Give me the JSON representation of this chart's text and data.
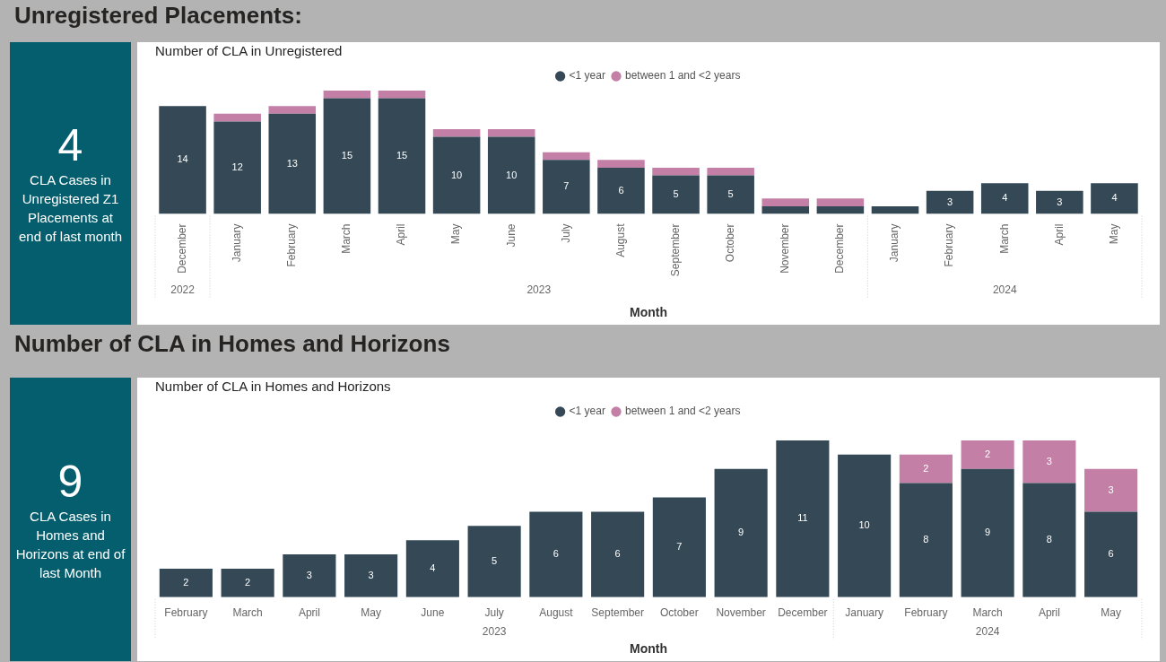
{
  "chart_data": [
    {
      "type": "other",
      "title": "Unregistered Placements:",
      "annotations": [
        "4",
        "CLA Cases in Unregistered Z1 Placements at end of last month"
      ]
    },
    {
      "type": "bar",
      "stacked": true,
      "title": "Number of CLA in Unregistered",
      "xlabel": "Month",
      "legend": "top",
      "categories": [
        "December",
        "January",
        "February",
        "March",
        "April",
        "May",
        "June",
        "July",
        "August",
        "September",
        "October",
        "November",
        "December",
        "January",
        "February",
        "March",
        "April",
        "May"
      ],
      "annotations": [
        "2022",
        "2023",
        "2024"
      ],
      "series": [
        {
          "name": "<1 year",
          "color": "#344856",
          "values": [
            14,
            12,
            13,
            15,
            15,
            10,
            10,
            7,
            6,
            5,
            5,
            1,
            1,
            1,
            3,
            4,
            3,
            4
          ],
          "value_labels": [
            "14",
            "12",
            "13",
            "15",
            "15",
            "10",
            "10",
            "7",
            "6",
            "5",
            "5",
            null,
            null,
            null,
            "3",
            "4",
            "3",
            "4"
          ]
        },
        {
          "name": "between 1 and <2 years",
          "color": "#c47fa6",
          "values": [
            null,
            1,
            1,
            1,
            1,
            1,
            1,
            1,
            1,
            1,
            1,
            1,
            1,
            null,
            null,
            null,
            null,
            null
          ]
        }
      ]
    },
    {
      "type": "other",
      "title": "Number of CLA in Homes and Horizons",
      "annotations": [
        "9",
        "CLA Cases in Homes and Horizons at end of last Month"
      ]
    },
    {
      "type": "bar",
      "stacked": true,
      "title": "Number of CLA in Homes and Horizons",
      "xlabel": "Month",
      "legend": "top",
      "data_labels": true,
      "categories": [
        "February",
        "March",
        "April",
        "May",
        "June",
        "July",
        "August",
        "September",
        "October",
        "November",
        "December",
        "January",
        "February",
        "March",
        "April",
        "May"
      ],
      "annotations": [
        "2023",
        "2024"
      ],
      "series": [
        {
          "name": "<1 year",
          "color": "#344856",
          "values": [
            2,
            2,
            3,
            3,
            4,
            5,
            6,
            6,
            7,
            9,
            11,
            10,
            8,
            9,
            8,
            6
          ]
        },
        {
          "name": "between 1 and <2 years",
          "color": "#c47fa6",
          "values": [
            null,
            null,
            null,
            null,
            null,
            null,
            null,
            null,
            null,
            null,
            null,
            null,
            2,
            2,
            3,
            3
          ]
        }
      ]
    }
  ]
}
